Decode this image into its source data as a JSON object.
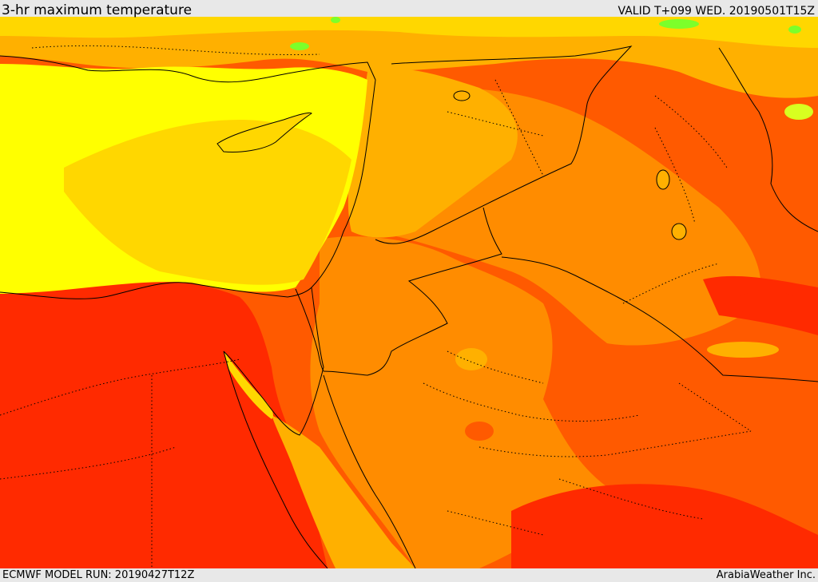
{
  "header": {
    "title": "3-hr maximum temperature",
    "valid": "VALID T+099 WED. 20190501T15Z"
  },
  "footer": {
    "model_run": "ECMWF MODEL RUN: 20190427T12Z",
    "credit": "ArabiaWeather Inc."
  },
  "colors": {
    "yellow": "#ffff00",
    "gold": "#ffd700",
    "amber": "#ffb000",
    "orange": "#ff8c00",
    "red_orange": "#ff5a00",
    "red": "#ff2a00",
    "green": "#7cff2a",
    "lime": "#d8ff20",
    "line": "#000000"
  }
}
